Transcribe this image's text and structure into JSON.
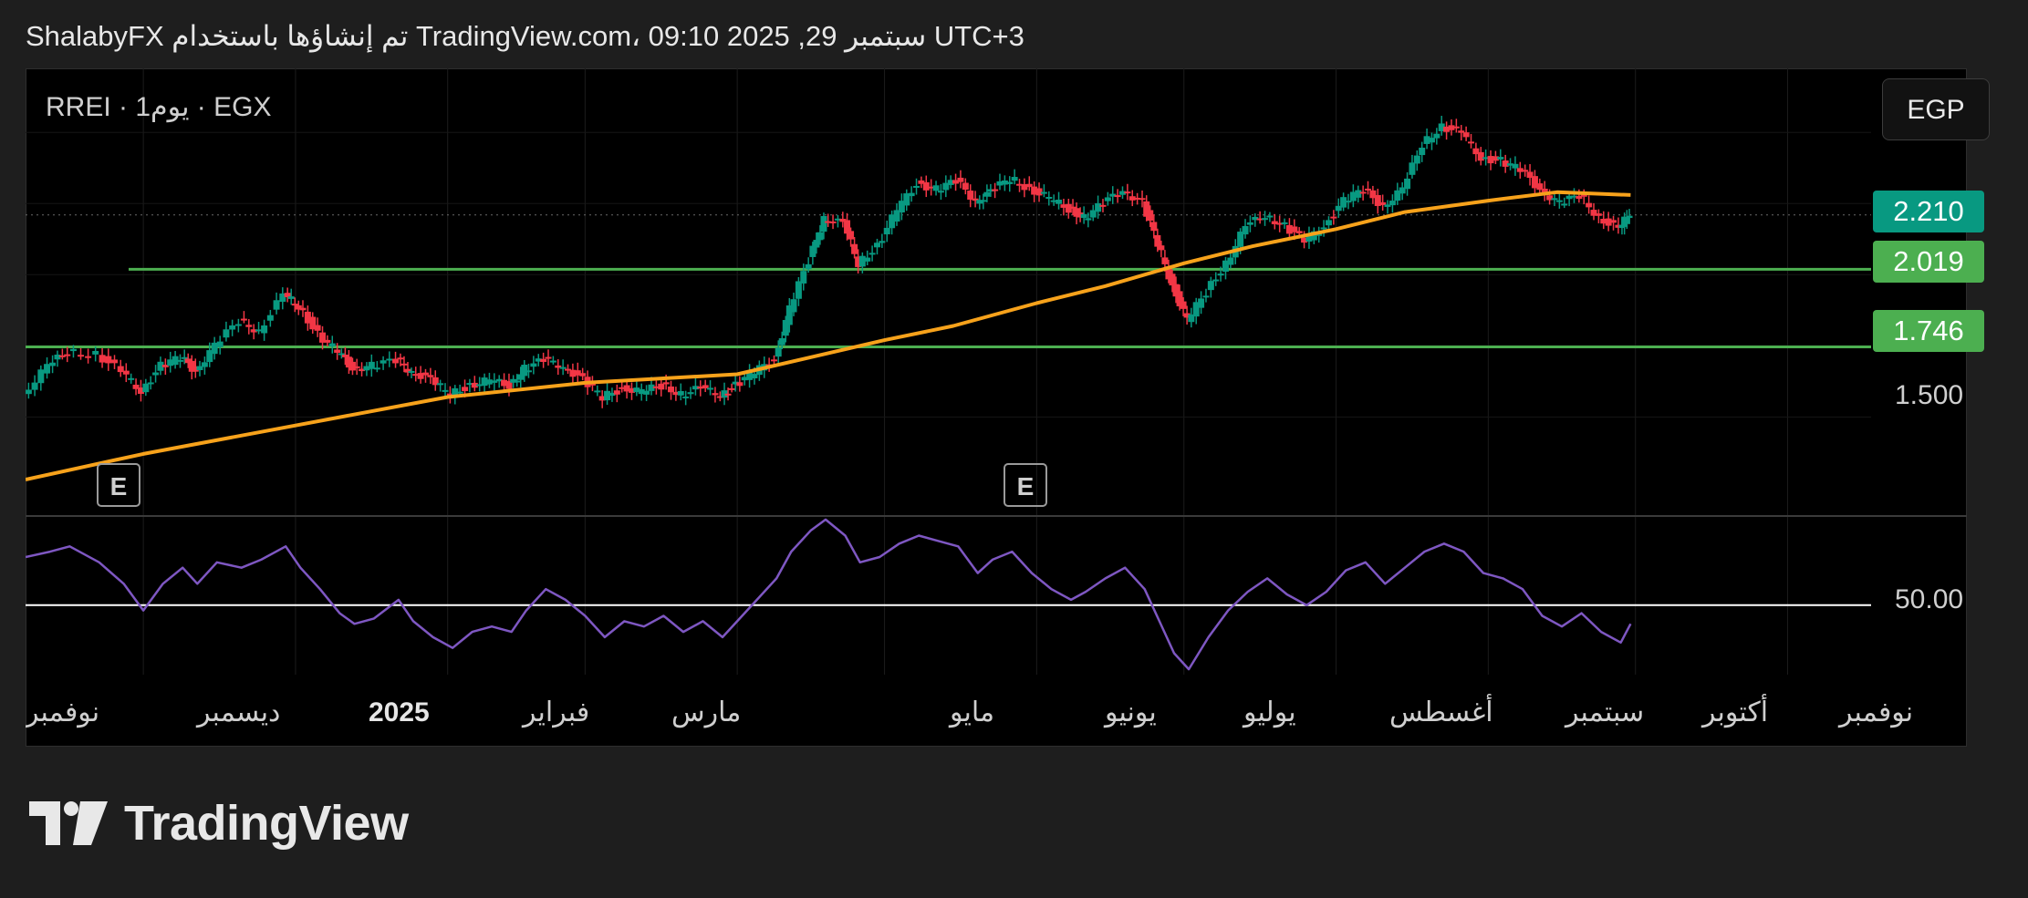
{
  "header": {
    "text": "ShalabyFX تم إنشاؤها باستخدام TradingView.com، 09:10 2025 ,29 سبتمبر UTC+3"
  },
  "symbol": {
    "info": "RREI · 1يوم · EGX",
    "currency": "EGP"
  },
  "price_tags": [
    {
      "label": "2.210",
      "color": "#089981"
    },
    {
      "label": "2.019",
      "color": "#4caf50"
    },
    {
      "label": "1.746",
      "color": "#4caf50"
    }
  ],
  "price_axis_label": "1.500",
  "rsi_axis_label": "50.00",
  "earnings_badge": "E",
  "time_axis": [
    {
      "label": "نوفمبر",
      "bold": false
    },
    {
      "label": "ديسمبر",
      "bold": false
    },
    {
      "label": "2025",
      "bold": true
    },
    {
      "label": "فبراير",
      "bold": false
    },
    {
      "label": "مارس",
      "bold": false
    },
    {
      "label": "مايو",
      "bold": false
    },
    {
      "label": "يونيو",
      "bold": false
    },
    {
      "label": "يوليو",
      "bold": false
    },
    {
      "label": "أغسطس",
      "bold": false
    },
    {
      "label": "سبتمبر",
      "bold": false
    },
    {
      "label": "أكتوبر",
      "bold": false
    },
    {
      "label": "نوفمبر",
      "bold": false
    }
  ],
  "logo": {
    "text": "TradingView"
  },
  "colors": {
    "up": "#089981",
    "down": "#f23645",
    "moving_average": "#f7a21b",
    "rsi": "#7e57c2",
    "support_lines": "#4caf50"
  },
  "chart_data": {
    "type": "candlestick",
    "x_range": [
      "2024-11-07",
      "2025-11-18"
    ],
    "y_range": [
      1.155,
      2.725
    ],
    "current_price": 2.21,
    "horizontal_lines": [
      {
        "value": 2.019,
        "from": "2024-11-28",
        "to": "2025-11-18"
      },
      {
        "value": 1.746,
        "from": "2024-11-07",
        "to": "2025-11-18"
      }
    ],
    "price_series": [
      [
        "2024-11-07",
        1.58
      ],
      [
        "2024-11-12",
        1.68
      ],
      [
        "2024-11-16",
        1.73
      ],
      [
        "2024-11-22",
        1.72
      ],
      [
        "2024-11-27",
        1.66
      ],
      [
        "2024-12-01",
        1.59
      ],
      [
        "2024-12-05",
        1.68
      ],
      [
        "2024-12-09",
        1.71
      ],
      [
        "2024-12-12",
        1.66
      ],
      [
        "2024-12-16",
        1.75
      ],
      [
        "2024-12-21",
        1.84
      ],
      [
        "2024-12-25",
        1.8
      ],
      [
        "2024-12-30",
        1.93
      ],
      [
        "2025-01-02",
        1.89
      ],
      [
        "2025-01-06",
        1.79
      ],
      [
        "2025-01-10",
        1.73
      ],
      [
        "2025-01-13",
        1.67
      ],
      [
        "2025-01-17",
        1.68
      ],
      [
        "2025-01-22",
        1.7
      ],
      [
        "2025-01-25",
        1.66
      ],
      [
        "2025-01-29",
        1.63
      ],
      [
        "2025-02-02",
        1.58
      ],
      [
        "2025-02-06",
        1.61
      ],
      [
        "2025-02-10",
        1.63
      ],
      [
        "2025-02-14",
        1.61
      ],
      [
        "2025-02-17",
        1.67
      ],
      [
        "2025-02-21",
        1.7
      ],
      [
        "2025-02-25",
        1.68
      ],
      [
        "2025-03-01",
        1.63
      ],
      [
        "2025-03-05",
        1.57
      ],
      [
        "2025-03-09",
        1.6
      ],
      [
        "2025-03-13",
        1.59
      ],
      [
        "2025-03-17",
        1.61
      ],
      [
        "2025-03-21",
        1.58
      ],
      [
        "2025-03-25",
        1.6
      ],
      [
        "2025-03-29",
        1.58
      ],
      [
        "2025-04-01",
        1.61
      ],
      [
        "2025-04-05",
        1.66
      ],
      [
        "2025-04-09",
        1.7
      ],
      [
        "2025-04-12",
        1.88
      ],
      [
        "2025-04-16",
        2.05
      ],
      [
        "2025-04-19",
        2.2
      ],
      [
        "2025-04-23",
        2.18
      ],
      [
        "2025-04-26",
        2.04
      ],
      [
        "2025-04-30",
        2.1
      ],
      [
        "2025-05-04",
        2.23
      ],
      [
        "2025-05-08",
        2.32
      ],
      [
        "2025-05-12",
        2.3
      ],
      [
        "2025-05-16",
        2.33
      ],
      [
        "2025-05-20",
        2.26
      ],
      [
        "2025-05-23",
        2.29
      ],
      [
        "2025-05-27",
        2.34
      ],
      [
        "2025-05-31",
        2.3
      ],
      [
        "2025-06-04",
        2.27
      ],
      [
        "2025-06-08",
        2.23
      ],
      [
        "2025-06-11",
        2.2
      ],
      [
        "2025-06-15",
        2.25
      ],
      [
        "2025-06-19",
        2.3
      ],
      [
        "2025-06-23",
        2.25
      ],
      [
        "2025-06-26",
        2.11
      ],
      [
        "2025-06-29",
        1.96
      ],
      [
        "2025-07-02",
        1.84
      ],
      [
        "2025-07-06",
        1.94
      ],
      [
        "2025-07-10",
        2.04
      ],
      [
        "2025-07-14",
        2.17
      ],
      [
        "2025-07-18",
        2.21
      ],
      [
        "2025-07-22",
        2.17
      ],
      [
        "2025-07-26",
        2.12
      ],
      [
        "2025-07-30",
        2.17
      ],
      [
        "2025-08-03",
        2.26
      ],
      [
        "2025-08-07",
        2.3
      ],
      [
        "2025-08-11",
        2.24
      ],
      [
        "2025-08-15",
        2.3
      ],
      [
        "2025-08-19",
        2.46
      ],
      [
        "2025-08-23",
        2.52
      ],
      [
        "2025-08-27",
        2.5
      ],
      [
        "2025-08-31",
        2.41
      ],
      [
        "2025-09-04",
        2.4
      ],
      [
        "2025-09-08",
        2.37
      ],
      [
        "2025-09-12",
        2.3
      ],
      [
        "2025-09-16",
        2.25
      ],
      [
        "2025-09-20",
        2.28
      ],
      [
        "2025-09-24",
        2.2
      ],
      [
        "2025-09-28",
        2.16
      ],
      [
        "2025-09-30",
        2.22
      ]
    ],
    "moving_average": [
      [
        "2024-11-07",
        1.28
      ],
      [
        "2024-12-01",
        1.37
      ],
      [
        "2025-01-01",
        1.47
      ],
      [
        "2025-02-01",
        1.57
      ],
      [
        "2025-03-01",
        1.62
      ],
      [
        "2025-04-01",
        1.65
      ],
      [
        "2025-04-16",
        1.71
      ],
      [
        "2025-05-01",
        1.77
      ],
      [
        "2025-05-15",
        1.82
      ],
      [
        "2025-06-01",
        1.9
      ],
      [
        "2025-06-15",
        1.96
      ],
      [
        "2025-07-01",
        2.04
      ],
      [
        "2025-07-15",
        2.1
      ],
      [
        "2025-08-01",
        2.16
      ],
      [
        "2025-08-15",
        2.22
      ],
      [
        "2025-09-01",
        2.26
      ],
      [
        "2025-09-15",
        2.29
      ],
      [
        "2025-09-30",
        2.28
      ]
    ],
    "rsi": {
      "reference": 50,
      "y_range": [
        24,
        83
      ],
      "values": [
        [
          "2024-11-07",
          68
        ],
        [
          "2024-11-12",
          70
        ],
        [
          "2024-11-16",
          72
        ],
        [
          "2024-11-22",
          66
        ],
        [
          "2024-11-27",
          58
        ],
        [
          "2024-12-01",
          48
        ],
        [
          "2024-12-05",
          58
        ],
        [
          "2024-12-09",
          64
        ],
        [
          "2024-12-12",
          58
        ],
        [
          "2024-12-16",
          66
        ],
        [
          "2024-12-21",
          64
        ],
        [
          "2024-12-25",
          67
        ],
        [
          "2024-12-30",
          72
        ],
        [
          "2025-01-02",
          64
        ],
        [
          "2025-01-06",
          56
        ],
        [
          "2025-01-10",
          47
        ],
        [
          "2025-01-13",
          43
        ],
        [
          "2025-01-17",
          45
        ],
        [
          "2025-01-22",
          52
        ],
        [
          "2025-01-25",
          44
        ],
        [
          "2025-01-29",
          38
        ],
        [
          "2025-02-02",
          34
        ],
        [
          "2025-02-06",
          40
        ],
        [
          "2025-02-10",
          42
        ],
        [
          "2025-02-14",
          40
        ],
        [
          "2025-02-17",
          48
        ],
        [
          "2025-02-21",
          56
        ],
        [
          "2025-02-25",
          52
        ],
        [
          "2025-03-01",
          46
        ],
        [
          "2025-03-05",
          38
        ],
        [
          "2025-03-09",
          44
        ],
        [
          "2025-03-13",
          42
        ],
        [
          "2025-03-17",
          46
        ],
        [
          "2025-03-21",
          40
        ],
        [
          "2025-03-25",
          44
        ],
        [
          "2025-03-29",
          38
        ],
        [
          "2025-04-01",
          44
        ],
        [
          "2025-04-05",
          52
        ],
        [
          "2025-04-09",
          60
        ],
        [
          "2025-04-12",
          70
        ],
        [
          "2025-04-16",
          78
        ],
        [
          "2025-04-19",
          82
        ],
        [
          "2025-04-23",
          76
        ],
        [
          "2025-04-26",
          66
        ],
        [
          "2025-04-30",
          68
        ],
        [
          "2025-05-04",
          73
        ],
        [
          "2025-05-08",
          76
        ],
        [
          "2025-05-12",
          74
        ],
        [
          "2025-05-16",
          72
        ],
        [
          "2025-05-20",
          62
        ],
        [
          "2025-05-23",
          67
        ],
        [
          "2025-05-27",
          70
        ],
        [
          "2025-05-31",
          62
        ],
        [
          "2025-06-04",
          56
        ],
        [
          "2025-06-08",
          52
        ],
        [
          "2025-06-11",
          55
        ],
        [
          "2025-06-15",
          60
        ],
        [
          "2025-06-19",
          64
        ],
        [
          "2025-06-23",
          56
        ],
        [
          "2025-06-26",
          44
        ],
        [
          "2025-06-29",
          32
        ],
        [
          "2025-07-02",
          26
        ],
        [
          "2025-07-06",
          38
        ],
        [
          "2025-07-10",
          48
        ],
        [
          "2025-07-14",
          55
        ],
        [
          "2025-07-18",
          60
        ],
        [
          "2025-07-22",
          54
        ],
        [
          "2025-07-26",
          50
        ],
        [
          "2025-07-30",
          55
        ],
        [
          "2025-08-03",
          63
        ],
        [
          "2025-08-07",
          66
        ],
        [
          "2025-08-11",
          58
        ],
        [
          "2025-08-15",
          64
        ],
        [
          "2025-08-19",
          70
        ],
        [
          "2025-08-23",
          73
        ],
        [
          "2025-08-27",
          70
        ],
        [
          "2025-08-31",
          62
        ],
        [
          "2025-09-04",
          60
        ],
        [
          "2025-09-08",
          56
        ],
        [
          "2025-09-12",
          46
        ],
        [
          "2025-09-16",
          42
        ],
        [
          "2025-09-20",
          47
        ],
        [
          "2025-09-24",
          40
        ],
        [
          "2025-09-28",
          36
        ],
        [
          "2025-09-30",
          43
        ]
      ]
    }
  }
}
